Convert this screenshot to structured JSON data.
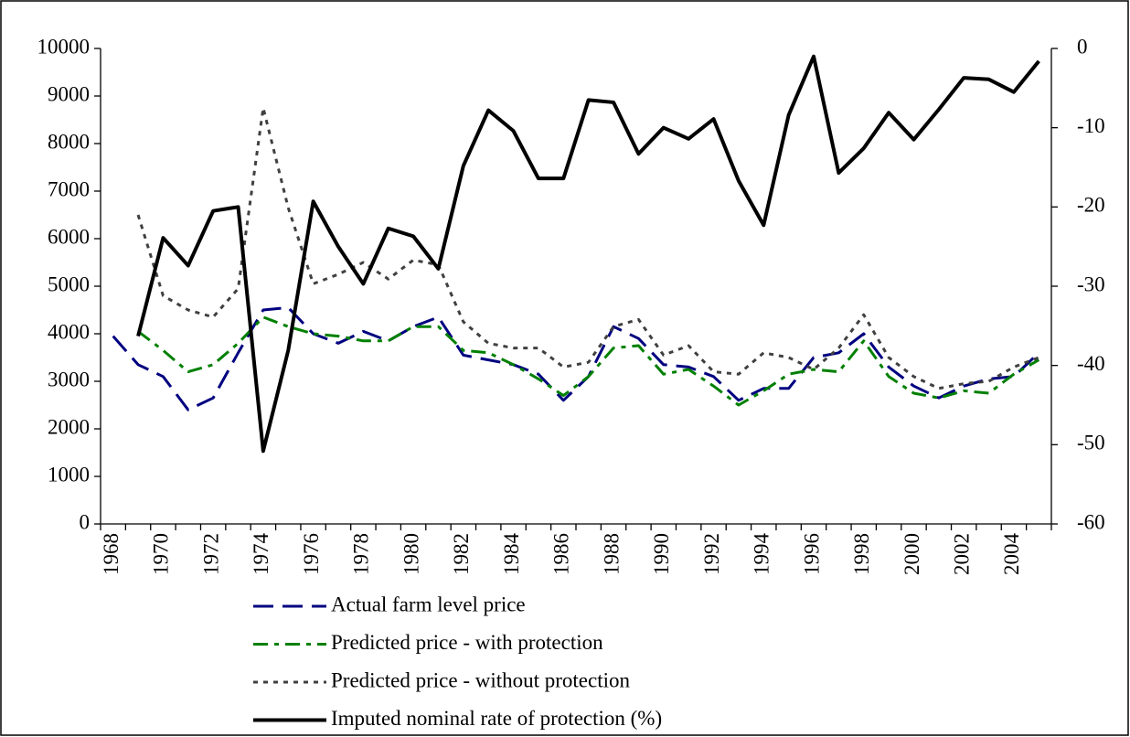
{
  "chart_data": {
    "type": "line",
    "x": [
      1968,
      1969,
      1970,
      1971,
      1972,
      1973,
      1974,
      1975,
      1976,
      1977,
      1978,
      1979,
      1980,
      1981,
      1982,
      1983,
      1984,
      1985,
      1986,
      1987,
      1988,
      1989,
      1990,
      1991,
      1992,
      1993,
      1994,
      1995,
      1996,
      1997,
      1998,
      1999,
      2000,
      2001,
      2002,
      2003,
      2004,
      2005
    ],
    "xlim": [
      1967.5,
      2005.5
    ],
    "xticks": [
      1968,
      1970,
      1972,
      1974,
      1976,
      1978,
      1980,
      1982,
      1984,
      1986,
      1988,
      1990,
      1992,
      1994,
      1996,
      1998,
      2000,
      2002,
      2004
    ],
    "ylim": [
      0,
      10000
    ],
    "yticks": [
      0,
      1000,
      2000,
      3000,
      4000,
      5000,
      6000,
      7000,
      8000,
      9000,
      10000
    ],
    "y2lim": [
      -60,
      0
    ],
    "y2ticks": [
      -60,
      -50,
      -40,
      -30,
      -20,
      -10,
      0
    ],
    "grid": false,
    "legend": "bottom",
    "series": [
      {
        "name": "Actual farm level price",
        "color": "#000080",
        "dash": "long-dash",
        "width": 3,
        "values": [
          3950,
          3350,
          3100,
          2400,
          2650,
          3600,
          4500,
          4550,
          4000,
          3800,
          4050,
          3850,
          4150,
          4350,
          3550,
          3450,
          3350,
          3150,
          2600,
          3100,
          4150,
          3900,
          3350,
          3300,
          3100,
          2600,
          2850,
          2850,
          3500,
          3600,
          4000,
          3300,
          2900,
          2650,
          2900,
          3050,
          3100,
          3600
        ]
      },
      {
        "name": "Predicted price - with protection",
        "color": "#008000",
        "dash": "dash-dot",
        "width": 3,
        "values": [
          null,
          4050,
          3650,
          3200,
          3350,
          3800,
          4350,
          4150,
          4000,
          3950,
          3850,
          3850,
          4150,
          4150,
          3650,
          3600,
          3350,
          3050,
          2700,
          3100,
          3700,
          3750,
          3150,
          3250,
          2900,
          2500,
          2800,
          3150,
          3250,
          3200,
          3850,
          3100,
          2750,
          2650,
          2800,
          2750,
          3150,
          3450
        ]
      },
      {
        "name": "Predicted price - without protection",
        "color": "#404040",
        "dash": "dot",
        "width": 3,
        "values": [
          null,
          6500,
          4800,
          4500,
          4350,
          4950,
          8750,
          6650,
          5050,
          5250,
          5500,
          5150,
          5550,
          5450,
          4250,
          3800,
          3700,
          3700,
          3300,
          3400,
          4150,
          4300,
          3550,
          3750,
          3200,
          3150,
          3600,
          3500,
          3250,
          3700,
          4400,
          3500,
          3100,
          2850,
          2950,
          3000,
          3300,
          3500
        ]
      },
      {
        "name": "Imputed nominal rate of protection (%)",
        "color": "#000000",
        "dash": "solid",
        "width": 4,
        "axis": "y2",
        "values": [
          null,
          -36.3,
          -23.9,
          -27.4,
          -20.5,
          -20.0,
          -50.8,
          -38.1,
          -19.3,
          -25.0,
          -29.7,
          -22.7,
          -23.7,
          -27.8,
          -14.8,
          -7.8,
          -10.4,
          -16.4,
          -16.4,
          -6.5,
          -6.8,
          -13.3,
          -10.0,
          -11.4,
          -8.9,
          -16.7,
          -22.3,
          -8.4,
          -1.0,
          -15.7,
          -12.6,
          -8.1,
          -11.5,
          -7.7,
          -3.7,
          -3.9,
          -5.5,
          -1.6
        ]
      }
    ]
  }
}
